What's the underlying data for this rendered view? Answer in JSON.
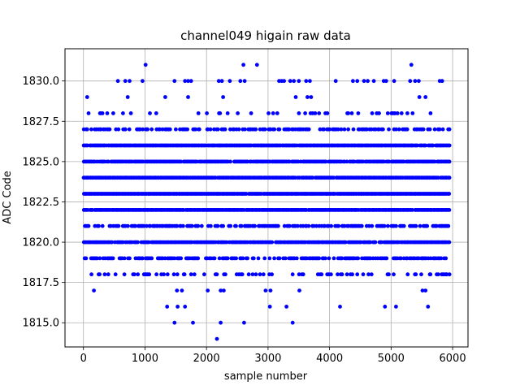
{
  "chart_data": {
    "type": "scatter",
    "title": "channel049 higain raw data",
    "xlabel": "sample number",
    "ylabel": "ADC Code",
    "xlim": [
      -300,
      6250
    ],
    "ylim": [
      1813.5,
      1832.0
    ],
    "xticks": [
      0,
      1000,
      2000,
      3000,
      4000,
      5000,
      6000
    ],
    "xtick_labels": [
      "0",
      "1000",
      "2000",
      "3000",
      "4000",
      "5000",
      "6000"
    ],
    "yticks": [
      1815.0,
      1817.5,
      1820.0,
      1822.5,
      1825.0,
      1827.5,
      1830.0
    ],
    "ytick_labels": [
      "1815.0",
      "1817.5",
      "1820.0",
      "1822.5",
      "1825.0",
      "1827.5",
      "1830.0"
    ],
    "grid": true,
    "marker_color": "#0000ff",
    "sample_range": [
      0,
      5950
    ],
    "level_density": {
      "1827": 0.55,
      "1826": 0.97,
      "1825": 0.9,
      "1824": 0.98,
      "1823": 0.99,
      "1822": 0.98,
      "1821": 0.6,
      "1820": 0.93,
      "1819": 0.55,
      "1818": 0.3,
      "1828": 0.12
    },
    "sparse_points": [
      {
        "x": 1010,
        "y": 1831
      },
      {
        "x": 2600,
        "y": 1831
      },
      {
        "x": 2820,
        "y": 1831
      },
      {
        "x": 5330,
        "y": 1831
      },
      {
        "x": 560,
        "y": 1830
      },
      {
        "x": 680,
        "y": 1830
      },
      {
        "x": 750,
        "y": 1830
      },
      {
        "x": 960,
        "y": 1830
      },
      {
        "x": 1480,
        "y": 1830
      },
      {
        "x": 1650,
        "y": 1830
      },
      {
        "x": 1700,
        "y": 1830
      },
      {
        "x": 1750,
        "y": 1830
      },
      {
        "x": 2200,
        "y": 1830
      },
      {
        "x": 2250,
        "y": 1830
      },
      {
        "x": 2380,
        "y": 1830
      },
      {
        "x": 2550,
        "y": 1830
      },
      {
        "x": 2620,
        "y": 1830
      },
      {
        "x": 3180,
        "y": 1830
      },
      {
        "x": 3220,
        "y": 1830
      },
      {
        "x": 3260,
        "y": 1830
      },
      {
        "x": 3360,
        "y": 1830
      },
      {
        "x": 3420,
        "y": 1830
      },
      {
        "x": 3500,
        "y": 1830
      },
      {
        "x": 3620,
        "y": 1830
      },
      {
        "x": 3680,
        "y": 1830
      },
      {
        "x": 4100,
        "y": 1830
      },
      {
        "x": 4380,
        "y": 1830
      },
      {
        "x": 4450,
        "y": 1830
      },
      {
        "x": 4560,
        "y": 1830
      },
      {
        "x": 4620,
        "y": 1830
      },
      {
        "x": 4720,
        "y": 1830
      },
      {
        "x": 4880,
        "y": 1830
      },
      {
        "x": 4920,
        "y": 1830
      },
      {
        "x": 5050,
        "y": 1830
      },
      {
        "x": 5310,
        "y": 1830
      },
      {
        "x": 5390,
        "y": 1830
      },
      {
        "x": 5450,
        "y": 1830
      },
      {
        "x": 5790,
        "y": 1830
      },
      {
        "x": 5830,
        "y": 1830
      },
      {
        "x": 60,
        "y": 1829
      },
      {
        "x": 720,
        "y": 1829
      },
      {
        "x": 1330,
        "y": 1829
      },
      {
        "x": 1700,
        "y": 1829
      },
      {
        "x": 2270,
        "y": 1829
      },
      {
        "x": 3450,
        "y": 1829
      },
      {
        "x": 3640,
        "y": 1829
      },
      {
        "x": 3700,
        "y": 1829
      },
      {
        "x": 5460,
        "y": 1829
      },
      {
        "x": 5560,
        "y": 1829
      },
      {
        "x": 170,
        "y": 1817
      },
      {
        "x": 1520,
        "y": 1817
      },
      {
        "x": 1600,
        "y": 1817
      },
      {
        "x": 2020,
        "y": 1817
      },
      {
        "x": 2230,
        "y": 1817
      },
      {
        "x": 2280,
        "y": 1817
      },
      {
        "x": 2960,
        "y": 1817
      },
      {
        "x": 3040,
        "y": 1817
      },
      {
        "x": 3510,
        "y": 1817
      },
      {
        "x": 5510,
        "y": 1817
      },
      {
        "x": 5560,
        "y": 1817
      },
      {
        "x": 1360,
        "y": 1816
      },
      {
        "x": 1530,
        "y": 1816
      },
      {
        "x": 1650,
        "y": 1816
      },
      {
        "x": 3030,
        "y": 1816
      },
      {
        "x": 3300,
        "y": 1816
      },
      {
        "x": 4170,
        "y": 1816
      },
      {
        "x": 4900,
        "y": 1816
      },
      {
        "x": 5080,
        "y": 1816
      },
      {
        "x": 5600,
        "y": 1816
      },
      {
        "x": 1480,
        "y": 1815
      },
      {
        "x": 1780,
        "y": 1815
      },
      {
        "x": 2230,
        "y": 1815
      },
      {
        "x": 2610,
        "y": 1815
      },
      {
        "x": 3400,
        "y": 1815
      },
      {
        "x": 2170,
        "y": 1814
      }
    ]
  }
}
